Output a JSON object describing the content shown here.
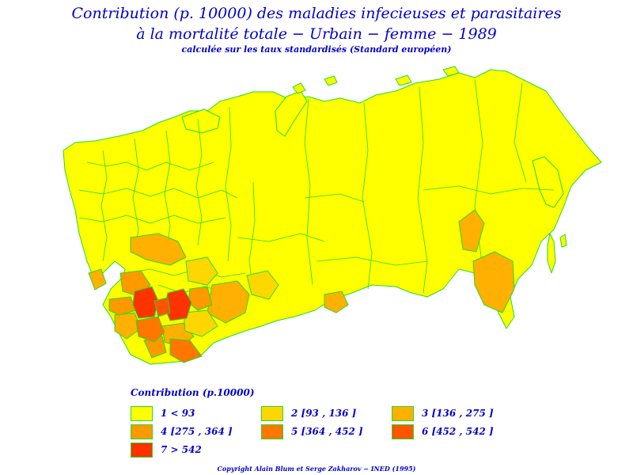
{
  "title_line1": "Contribution (p. 10000) des maladies infecieuses et parasitaires",
  "title_line2": "à la mortalité totale − Urbain − femme − 1989",
  "subtitle": "calculée sur les taux standardisés (Standard européen)",
  "legend": {
    "title": "Contribution (p.10000)",
    "items": [
      {
        "label": "1  <  93",
        "color": "#ffff00"
      },
      {
        "label": "2 [93 , 136 ]",
        "color": "#ffd700"
      },
      {
        "label": "3 [136 , 275 ]",
        "color": "#ffb000"
      },
      {
        "label": "4 [275 , 364 ]",
        "color": "#ff9900"
      },
      {
        "label": "5 [364 , 452 ]",
        "color": "#ff7700"
      },
      {
        "label": "6 [452 , 542 ]",
        "color": "#ff5500"
      },
      {
        "label": "7  >  542",
        "color": "#ff3300"
      }
    ]
  },
  "colors": {
    "text": "#0000cc",
    "border": "#22dd22",
    "land_default": "#ffff00"
  },
  "copyright": "Copyright Alain Blum et Serge Zakharov − INED (1995)"
}
